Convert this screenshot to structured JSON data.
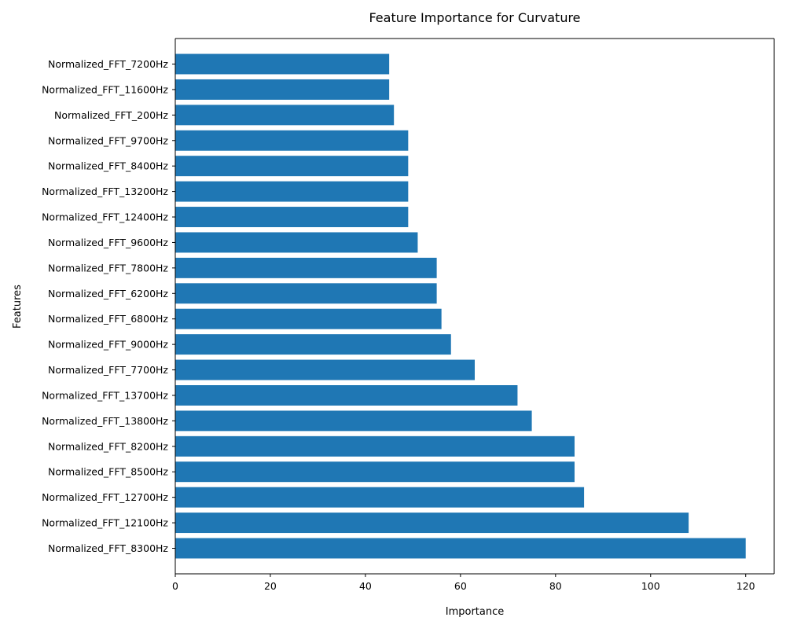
{
  "chart_data": {
    "type": "bar",
    "orientation": "horizontal",
    "title": "Feature Importance for Curvature",
    "xlabel": "Importance",
    "ylabel": "Features",
    "xlim": [
      0,
      126
    ],
    "xticks": [
      0,
      20,
      40,
      60,
      80,
      100,
      120
    ],
    "grid": false,
    "bar_color": "#1f77b4",
    "categories": [
      "Normalized_FFT_8300Hz",
      "Normalized_FFT_12100Hz",
      "Normalized_FFT_12700Hz",
      "Normalized_FFT_8500Hz",
      "Normalized_FFT_8200Hz",
      "Normalized_FFT_13800Hz",
      "Normalized_FFT_13700Hz",
      "Normalized_FFT_7700Hz",
      "Normalized_FFT_9000Hz",
      "Normalized_FFT_6800Hz",
      "Normalized_FFT_6200Hz",
      "Normalized_FFT_7800Hz",
      "Normalized_FFT_9600Hz",
      "Normalized_FFT_12400Hz",
      "Normalized_FFT_13200Hz",
      "Normalized_FFT_8400Hz",
      "Normalized_FFT_9700Hz",
      "Normalized_FFT_200Hz",
      "Normalized_FFT_11600Hz",
      "Normalized_FFT_7200Hz"
    ],
    "values": [
      120,
      108,
      86,
      84,
      84,
      75,
      72,
      63,
      58,
      56,
      55,
      55,
      51,
      49,
      49,
      49,
      49,
      46,
      45,
      45
    ]
  }
}
